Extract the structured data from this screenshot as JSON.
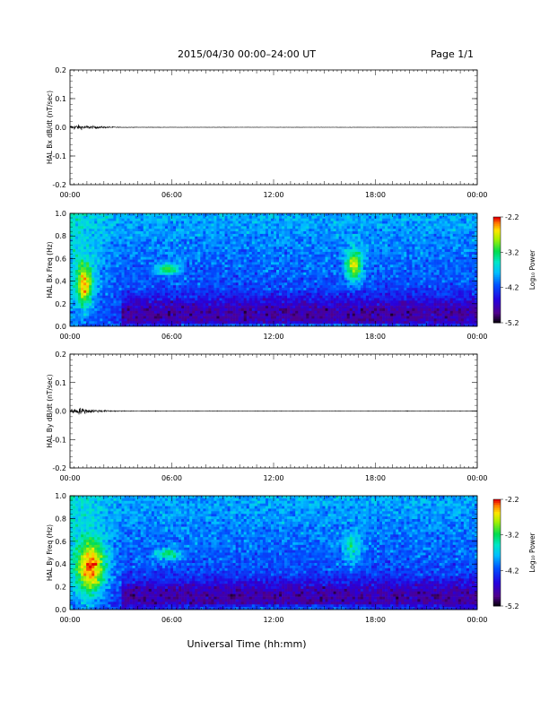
{
  "header": {
    "title": "2015/04/30  00:00–24:00 UT",
    "page": "Page 1/1"
  },
  "footer": {
    "xlabel": "Universal Time (hh:mm)"
  },
  "colorbar": {
    "label": "Log₁₀ Power",
    "ticks": [
      "-2.2",
      "-3.2",
      "-4.2",
      "-5.2"
    ],
    "range": [
      -5.2,
      -2.2
    ],
    "palette": "rainbow (black-purple-blue-cyan-green-yellow-red)"
  },
  "chart_data": [
    {
      "type": "line",
      "ylabel": "HAL Bx dB/dt (nT/sec)",
      "xlim": [
        0,
        24
      ],
      "ylim": [
        -0.2,
        0.2
      ],
      "x_tick_labels": [
        "00:00",
        "06:00",
        "12:00",
        "18:00",
        "00:00"
      ],
      "y_tick_labels": [
        "0.2",
        "0.1",
        "0.0",
        "-0.1",
        "-0.2"
      ],
      "series": [
        {
          "x": [
            0,
            0.2,
            0.4,
            0.6,
            0.8,
            1.0,
            1.3,
            1.6,
            2.0,
            2.5,
            3.0,
            6,
            12,
            18,
            24
          ],
          "amplitude": [
            0.006,
            0.008,
            0.01,
            0.008,
            0.007,
            0.006,
            0.005,
            0.004,
            0.003,
            0.002,
            0.001,
            0.0005,
            0.0004,
            0.0005,
            0.0004
          ]
        }
      ]
    },
    {
      "type": "heatmap",
      "ylabel": "HAL Bx Freq (Hz)",
      "xlim": [
        0,
        24
      ],
      "ylim": [
        0.0,
        1.0
      ],
      "x_tick_labels": [
        "00:00",
        "06:00",
        "12:00",
        "18:00",
        "00:00"
      ],
      "y_tick_labels": [
        "1.0",
        "0.8",
        "0.6",
        "0.4",
        "0.2",
        "0.0"
      ],
      "z_range": [
        -5.2,
        -2.2
      ],
      "features": [
        {
          "t_start": 0.3,
          "t_end": 1.4,
          "f_low": 0.15,
          "f_high": 0.6,
          "peak_log_power": -2.4
        },
        {
          "t_start": 5.0,
          "t_end": 6.5,
          "f_low": 0.45,
          "f_high": 0.56,
          "peak_log_power": -3.0
        },
        {
          "t_start": 16.2,
          "t_end": 17.3,
          "f_low": 0.38,
          "f_high": 0.7,
          "peak_log_power": -2.7
        },
        {
          "t_start": 3.0,
          "t_end": 24,
          "f_low": 0.0,
          "f_high": 0.03,
          "peak_log_power": -4.0
        }
      ]
    },
    {
      "type": "line",
      "ylabel": "HAL By dB/dt (nT/sec)",
      "xlim": [
        0,
        24
      ],
      "ylim": [
        -0.2,
        0.2
      ],
      "x_tick_labels": [
        "00:00",
        "06:00",
        "12:00",
        "18:00",
        "00:00"
      ],
      "y_tick_labels": [
        "0.2",
        "0.1",
        "0.0",
        "-0.1",
        "-0.2"
      ],
      "series": [
        {
          "x": [
            0,
            0.2,
            0.4,
            0.6,
            0.8,
            1.0,
            1.3,
            1.6,
            2.0,
            2.5,
            3.0,
            6,
            12,
            18,
            24
          ],
          "amplitude": [
            0.006,
            0.009,
            0.011,
            0.012,
            0.01,
            0.008,
            0.006,
            0.005,
            0.003,
            0.002,
            0.0015,
            0.0008,
            0.0007,
            0.0008,
            0.0007
          ]
        }
      ]
    },
    {
      "type": "heatmap",
      "ylabel": "HAL By Freq (Hz)",
      "xlim": [
        0,
        24
      ],
      "ylim": [
        0.0,
        1.0
      ],
      "x_tick_labels": [
        "00:00",
        "06:00",
        "12:00",
        "18:00",
        "00:00"
      ],
      "y_tick_labels": [
        "1.0",
        "0.8",
        "0.6",
        "0.4",
        "0.2",
        "0.0"
      ],
      "z_range": [
        -5.2,
        -2.2
      ],
      "features": [
        {
          "t_start": 0.2,
          "t_end": 2.2,
          "f_low": 0.1,
          "f_high": 0.65,
          "peak_log_power": -2.3
        },
        {
          "t_start": 5.0,
          "t_end": 6.5,
          "f_low": 0.43,
          "f_high": 0.54,
          "peak_log_power": -3.1
        },
        {
          "t_start": 16.0,
          "t_end": 17.3,
          "f_low": 0.38,
          "f_high": 0.7,
          "peak_log_power": -3.4
        },
        {
          "t_start": 3.0,
          "t_end": 24,
          "f_low": 0.0,
          "f_high": 0.04,
          "peak_log_power": -4.0
        }
      ]
    }
  ]
}
